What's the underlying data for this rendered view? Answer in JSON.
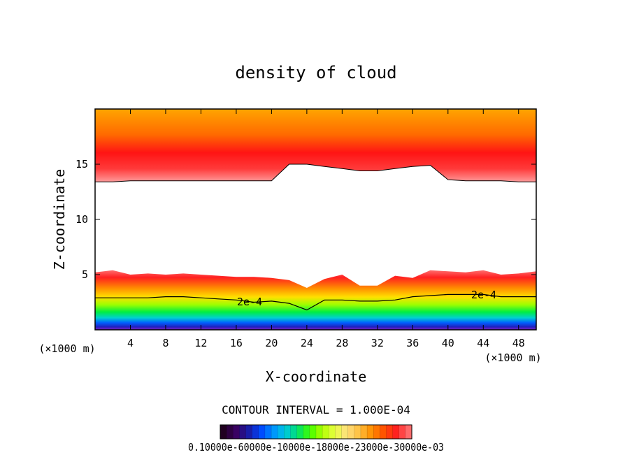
{
  "chart_data": {
    "type": "heatmap",
    "title": "density of cloud",
    "xlabel": "X-coordinate",
    "ylabel": "Z-coordinate",
    "x_unit": "(×1000 m)",
    "y_unit": "(×1000 m)",
    "xlim": [
      0,
      50
    ],
    "ylim": [
      0,
      20
    ],
    "x_ticks": [
      4,
      8,
      12,
      16,
      20,
      24,
      28,
      32,
      36,
      40,
      44,
      48
    ],
    "y_ticks": [
      5,
      10,
      15
    ],
    "contour_interval_text": "CONTOUR INTERVAL = 1.000E-04",
    "contour_labels": [
      "2e-4",
      "2e-4"
    ],
    "colorbar_labels_text": "0.10000e-60000e-10000e-18000e-23000e-30000e-03",
    "colorbar_levels": [
      0.0001,
      0.0002,
      0.0003,
      0.0004,
      0.0005,
      0.0006,
      0.0007,
      0.0008,
      0.0009,
      0.001,
      0.0011,
      0.0012,
      0.0013,
      0.0014,
      0.0015,
      0.0016,
      0.0017,
      0.0018,
      0.0019,
      0.002,
      0.0021,
      0.0022,
      0.0023,
      0.0024,
      0.0025,
      0.0026,
      0.0027,
      0.0028,
      0.0029,
      0.003
    ],
    "upper_layer": {
      "bottom_z": [
        13.4,
        13.4,
        13.5,
        13.5,
        13.5,
        13.5,
        13.5,
        13.5,
        13.5,
        13.5,
        13.5,
        15.0,
        15.0,
        14.8,
        14.6,
        14.4,
        14.4,
        14.6,
        14.8,
        14.9,
        13.6,
        13.5,
        13.5,
        13.5,
        13.4,
        13.4
      ],
      "top_z": 20
    },
    "lower_layer": {
      "top_z": [
        5.2,
        5.4,
        5.0,
        5.1,
        5.0,
        5.1,
        5.0,
        4.9,
        4.8,
        4.8,
        4.7,
        4.5,
        3.8,
        4.6,
        5.0,
        4.0,
        4.0,
        4.9,
        4.7,
        5.4,
        5.3,
        5.2,
        5.4,
        5.0,
        5.1,
        5.3
      ],
      "contour_2e4_z": [
        2.9,
        2.9,
        2.9,
        2.9,
        3.0,
        3.0,
        2.9,
        2.8,
        2.7,
        2.5,
        2.6,
        2.4,
        1.8,
        2.7,
        2.7,
        2.6,
        2.6,
        2.7,
        3.0,
        3.1,
        3.2,
        3.2,
        3.2,
        3.0,
        3.0,
        3.0
      ],
      "bottom_z": 0
    },
    "colors": {
      "high": "#ff1010",
      "upper_top": "#ffa000",
      "gap": "#ffffff"
    }
  }
}
